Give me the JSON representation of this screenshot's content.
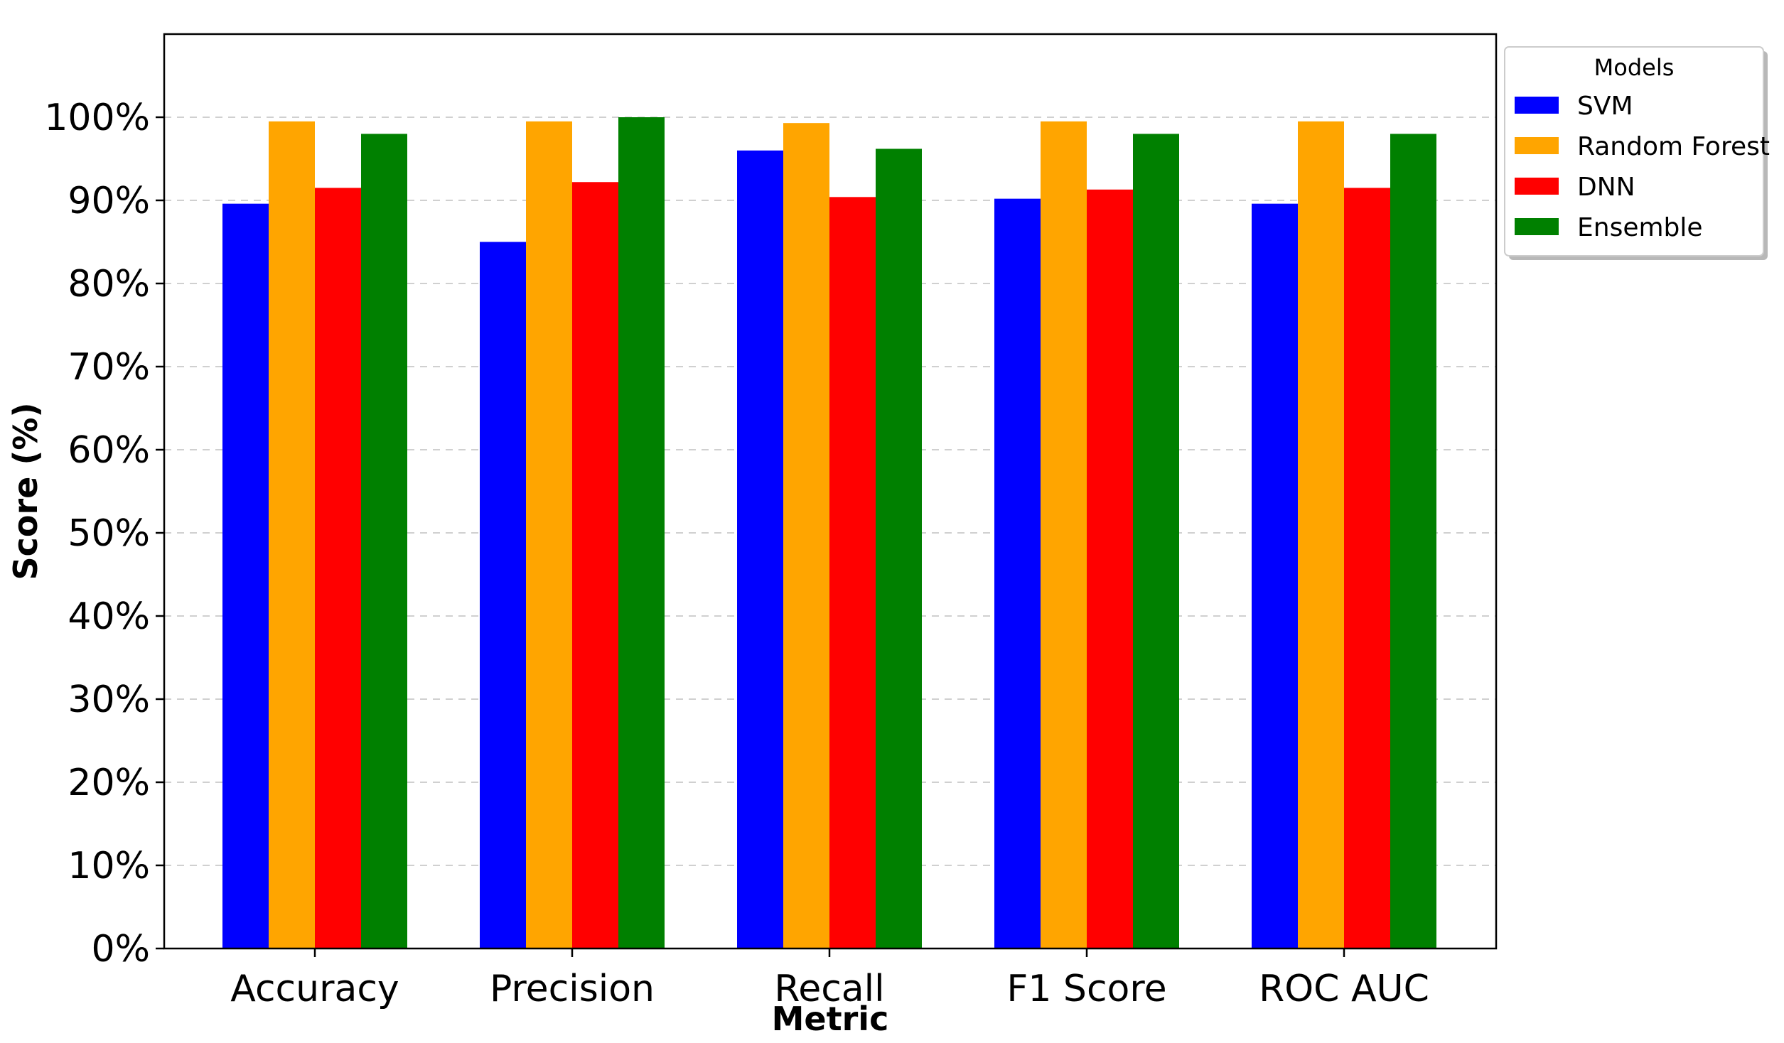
{
  "chart_data": {
    "type": "bar",
    "xlabel": "Metric",
    "ylabel": "Score (%)",
    "ylim": [
      0,
      110
    ],
    "yticks": [
      0,
      10,
      20,
      30,
      40,
      50,
      60,
      70,
      80,
      90,
      100
    ],
    "ytick_labels": [
      "0%",
      "10%",
      "20%",
      "30%",
      "40%",
      "50%",
      "60%",
      "70%",
      "80%",
      "90%",
      "100%"
    ],
    "grid": "horizontal dashed",
    "categories": [
      "Accuracy",
      "Precision",
      "Recall",
      "F1 Score",
      "ROC AUC"
    ],
    "legend": {
      "title": "Models",
      "placement": "outside-top-right"
    },
    "series": [
      {
        "name": "SVM",
        "color": "#0000ff",
        "values": [
          89.6,
          85.0,
          96.0,
          90.2,
          89.6
        ]
      },
      {
        "name": "Random Forest",
        "color": "#ffa500",
        "values": [
          99.5,
          99.5,
          99.3,
          99.5,
          99.5
        ]
      },
      {
        "name": "DNN",
        "color": "#ff0000",
        "values": [
          91.5,
          92.2,
          90.4,
          91.3,
          91.5
        ]
      },
      {
        "name": "Ensemble",
        "color": "#008000",
        "values": [
          98.0,
          100.0,
          96.2,
          98.0,
          98.0
        ]
      }
    ]
  }
}
